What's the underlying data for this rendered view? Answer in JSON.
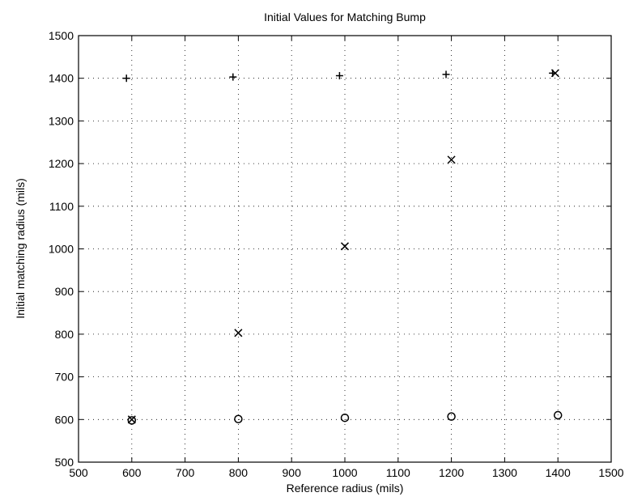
{
  "chart_data": {
    "type": "scatter",
    "title": "Initial Values for Matching Bump",
    "xlabel": "Reference radius (mils)",
    "ylabel": "Initial matching radius (mils)",
    "xlim": [
      500,
      1500
    ],
    "ylim": [
      500,
      1500
    ],
    "xticks": [
      "500",
      "600",
      "700",
      "800",
      "900",
      "1000",
      "1100",
      "1200",
      "1300",
      "1400",
      "1500"
    ],
    "yticks": [
      "500",
      "600",
      "700",
      "800",
      "900",
      "1000",
      "1100",
      "1200",
      "1300",
      "1400",
      "1500"
    ],
    "grid": true,
    "series": [
      {
        "marker": "plus",
        "points": [
          [
            590,
            1400
          ],
          [
            790,
            1403
          ],
          [
            990,
            1406
          ],
          [
            1190,
            1409
          ],
          [
            1390,
            1412
          ]
        ]
      },
      {
        "marker": "x",
        "points": [
          [
            600,
            600
          ],
          [
            800,
            803
          ],
          [
            1000,
            1006
          ],
          [
            1200,
            1209
          ],
          [
            1395,
            1412
          ]
        ]
      },
      {
        "marker": "circle",
        "points": [
          [
            600,
            598
          ],
          [
            800,
            601
          ],
          [
            1000,
            604
          ],
          [
            1200,
            607
          ],
          [
            1400,
            610
          ]
        ]
      }
    ]
  }
}
